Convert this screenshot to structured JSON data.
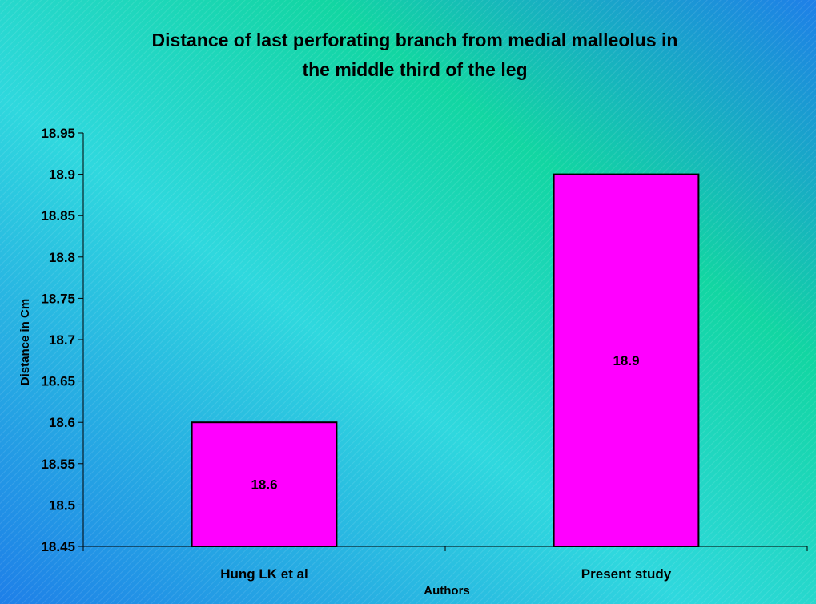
{
  "chart_data": {
    "type": "bar",
    "title_lines": [
      "Distance of last perforating branch from medial malleolus in",
      "the middle third of the leg"
    ],
    "xlabel": "Authors",
    "ylabel": "Distance in Cm",
    "categories": [
      "Hung LK et al",
      "Present study"
    ],
    "values": [
      18.6,
      18.9
    ],
    "data_labels": [
      "18.6",
      "18.9"
    ],
    "ylim": [
      18.45,
      18.95
    ],
    "yticks": [
      18.45,
      18.5,
      18.55,
      18.6,
      18.65,
      18.7,
      18.75,
      18.8,
      18.85,
      18.9,
      18.95
    ],
    "ytick_labels": [
      "18.45",
      "18.5",
      "18.55",
      "18.6",
      "18.65",
      "18.7",
      "18.75",
      "18.8",
      "18.85",
      "18.9",
      "18.95"
    ],
    "grid": false,
    "legend": "none",
    "colors": {
      "bar_fill": "#FF00FF",
      "bar_stroke": "#000000",
      "background_a": "#1E7FE8",
      "background_b": "#2FD8DE",
      "background_c": "#12D6A2"
    }
  }
}
